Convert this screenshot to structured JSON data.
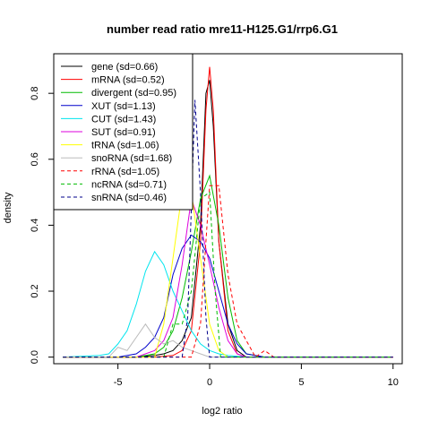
{
  "chart_data": {
    "type": "line",
    "title": "number read ratio mre11-H125.G1/rrp6.G1",
    "xlabel": "log2 ratio",
    "ylabel": "density",
    "xlim": [
      -8.5,
      10.5
    ],
    "ylim": [
      -0.02,
      0.92
    ],
    "x_ticks": [
      -5,
      0,
      5,
      10
    ],
    "x_tick_labels": [
      "-5",
      "0",
      "5",
      "10"
    ],
    "y_ticks": [
      0.0,
      0.2,
      0.4,
      0.6,
      0.8
    ],
    "y_tick_labels": [
      "0.0",
      "0.2",
      "0.4",
      "0.6",
      "0.8"
    ],
    "grid": false,
    "legend_position": "top-left",
    "series": [
      {
        "name": "gene (sd=0.66)",
        "color": "#000000",
        "dash": "solid",
        "x": [
          -8,
          -4,
          -3,
          -2.5,
          -2,
          -1.5,
          -1,
          -0.5,
          -0.2,
          0,
          0.2,
          0.5,
          1,
          1.5,
          2,
          4,
          10
        ],
        "y": [
          0,
          0,
          0.005,
          0.01,
          0.02,
          0.05,
          0.12,
          0.4,
          0.8,
          0.84,
          0.7,
          0.35,
          0.1,
          0.02,
          0,
          0,
          0
        ]
      },
      {
        "name": "mRNA (sd=0.52)",
        "color": "#ff0000",
        "dash": "solid",
        "x": [
          -8,
          -3,
          -2,
          -1.5,
          -1,
          -0.5,
          -0.2,
          0,
          0.2,
          0.5,
          1,
          1.5,
          2,
          10
        ],
        "y": [
          0,
          0,
          0.005,
          0.02,
          0.08,
          0.35,
          0.75,
          0.88,
          0.75,
          0.35,
          0.08,
          0.01,
          0,
          0
        ]
      },
      {
        "name": "divergent (sd=0.95)",
        "color": "#00bb00",
        "dash": "solid",
        "x": [
          -8,
          -4,
          -3,
          -2.5,
          -2,
          -1.5,
          -1,
          -0.5,
          0,
          0.5,
          1,
          1.5,
          2,
          3,
          10
        ],
        "y": [
          0,
          0,
          0.01,
          0.03,
          0.08,
          0.18,
          0.32,
          0.48,
          0.55,
          0.4,
          0.18,
          0.05,
          0.01,
          0,
          0
        ]
      },
      {
        "name": "XUT (sd=1.13)",
        "color": "#0000cc",
        "dash": "solid",
        "x": [
          -8,
          -5,
          -4,
          -3.5,
          -3,
          -2.5,
          -2,
          -1.5,
          -1,
          -0.5,
          0,
          0.5,
          1,
          1.5,
          2,
          3,
          10
        ],
        "y": [
          0,
          0,
          0.01,
          0.03,
          0.06,
          0.12,
          0.25,
          0.33,
          0.37,
          0.35,
          0.3,
          0.2,
          0.1,
          0.04,
          0.01,
          0,
          0
        ]
      },
      {
        "name": "CUT (sd=1.43)",
        "color": "#00e5ee",
        "dash": "solid",
        "x": [
          -8,
          -6,
          -5.5,
          -5,
          -4.5,
          -4,
          -3.5,
          -3,
          -2.5,
          -2,
          -1.5,
          -1,
          -0.5,
          0,
          0.5,
          1,
          2,
          10
        ],
        "y": [
          0,
          0.005,
          0.01,
          0.04,
          0.08,
          0.16,
          0.26,
          0.32,
          0.28,
          0.2,
          0.14,
          0.08,
          0.04,
          0.02,
          0.01,
          0.005,
          0,
          0
        ]
      },
      {
        "name": "SUT (sd=0.91)",
        "color": "#dd00dd",
        "dash": "solid",
        "x": [
          -8,
          -4,
          -3,
          -2.5,
          -2,
          -1.5,
          -1,
          -0.5,
          0,
          0.5,
          1,
          1.5,
          2,
          10
        ],
        "y": [
          0,
          0,
          0.02,
          0.05,
          0.12,
          0.28,
          0.48,
          0.4,
          0.28,
          0.15,
          0.05,
          0.01,
          0,
          0
        ]
      },
      {
        "name": "tRNA (sd=1.06)",
        "color": "#ffff00",
        "dash": "solid",
        "x": [
          -8,
          -3,
          -2.5,
          -2,
          -1.5,
          -1,
          -0.5,
          0,
          0.5,
          1,
          10
        ],
        "y": [
          0,
          0,
          0.1,
          0.3,
          0.5,
          0.5,
          0.3,
          0.1,
          0.02,
          0,
          0
        ]
      },
      {
        "name": "snoRNA (sd=1.68)",
        "color": "#bbbbbb",
        "dash": "solid",
        "x": [
          -8,
          -5.5,
          -5,
          -4.5,
          -4,
          -3.5,
          -3,
          -2.5,
          -2,
          -1.5,
          -1,
          -0.5,
          0,
          1,
          10
        ],
        "y": [
          0,
          0,
          0.03,
          0.02,
          0.06,
          0.1,
          0.06,
          0.04,
          0.05,
          0.03,
          0.02,
          0.01,
          0,
          0,
          0
        ]
      },
      {
        "name": "rRNA (sd=1.05)",
        "color": "#ff0000",
        "dash": "dashed",
        "x": [
          -8,
          -1,
          -0.5,
          0,
          0.5,
          1,
          1.5,
          2,
          2.5,
          3,
          3.5,
          10
        ],
        "y": [
          0,
          0,
          0.1,
          0.52,
          0.52,
          0.25,
          0.1,
          0.05,
          0,
          0.02,
          0,
          0
        ]
      },
      {
        "name": "ncRNA (sd=0.71)",
        "color": "#00bb00",
        "dash": "dashed",
        "x": [
          -8,
          -2.5,
          -2,
          -1.5,
          -1,
          -0.5,
          0,
          0.3,
          0.6,
          1,
          10
        ],
        "y": [
          0,
          0,
          0.1,
          0.1,
          0.2,
          0.48,
          0.5,
          0.2,
          0,
          0,
          0
        ]
      },
      {
        "name": "snRNA (sd=0.46)",
        "color": "#00008b",
        "dash": "dashed",
        "x": [
          -8,
          -1.5,
          -1.2,
          -0.8,
          -0.5,
          -0.2,
          0,
          0.3,
          10
        ],
        "y": [
          0,
          0,
          0.12,
          0.78,
          0.5,
          0.12,
          0,
          0,
          0
        ]
      }
    ]
  }
}
